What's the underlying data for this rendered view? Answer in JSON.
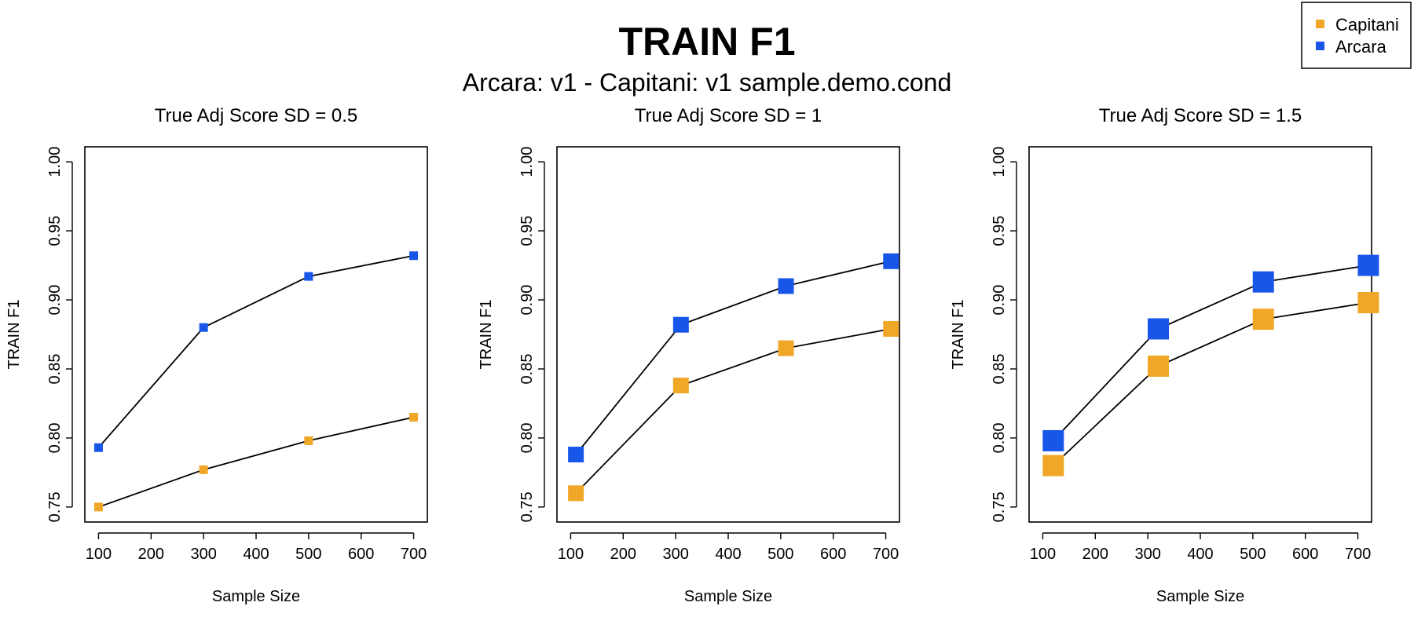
{
  "title": "TRAIN F1",
  "subtitle": "Arcara: v1 - Capitani: v1 sample.demo.cond",
  "legend": {
    "placement": "top-right",
    "items": [
      {
        "name": "Capitani",
        "color": "#f0a727"
      },
      {
        "name": "Arcara",
        "color": "#1856ea"
      }
    ]
  },
  "chart_data": [
    {
      "type": "line",
      "title": "True Adj Score SD = 0.5",
      "xlabel": "Sample Size",
      "ylabel": "TRAIN F1",
      "xlim": [
        100,
        700
      ],
      "ylim": [
        0.75,
        1.0
      ],
      "xticks": [
        "100",
        "200",
        "300",
        "400",
        "500",
        "600",
        "700"
      ],
      "yticks": [
        "0.75",
        "0.80",
        "0.85",
        "0.90",
        "0.95",
        "1.00"
      ],
      "grid": false,
      "series": [
        {
          "name": "Arcara",
          "color": "#1856ea",
          "x": [
            100,
            300,
            500,
            700
          ],
          "values": [
            0.793,
            0.88,
            0.917,
            0.932
          ]
        },
        {
          "name": "Capitani",
          "color": "#f0a727",
          "x": [
            100,
            300,
            500,
            700
          ],
          "values": [
            0.75,
            0.777,
            0.798,
            0.815
          ]
        }
      ]
    },
    {
      "type": "line",
      "title": "True Adj Score SD = 1",
      "xlabel": "Sample Size",
      "ylabel": "TRAIN F1",
      "xlim": [
        100,
        700
      ],
      "ylim": [
        0.75,
        1.0
      ],
      "xticks": [
        "100",
        "200",
        "300",
        "400",
        "500",
        "600",
        "700"
      ],
      "yticks": [
        "0.75",
        "0.80",
        "0.85",
        "0.90",
        "0.95",
        "1.00"
      ],
      "grid": false,
      "series": [
        {
          "name": "Arcara",
          "color": "#1856ea",
          "x": [
            110,
            310,
            510,
            710
          ],
          "values": [
            0.788,
            0.882,
            0.91,
            0.928
          ]
        },
        {
          "name": "Capitani",
          "color": "#f0a727",
          "x": [
            110,
            310,
            510,
            710
          ],
          "values": [
            0.76,
            0.838,
            0.865,
            0.879
          ]
        }
      ]
    },
    {
      "type": "line",
      "title": "True Adj Score SD = 1.5",
      "xlabel": "Sample Size",
      "ylabel": "TRAIN F1",
      "xlim": [
        100,
        700
      ],
      "ylim": [
        0.75,
        1.0
      ],
      "xticks": [
        "100",
        "200",
        "300",
        "400",
        "500",
        "600",
        "700"
      ],
      "yticks": [
        "0.75",
        "0.80",
        "0.85",
        "0.90",
        "0.95",
        "1.00"
      ],
      "grid": false,
      "series": [
        {
          "name": "Arcara",
          "color": "#1856ea",
          "x": [
            120,
            320,
            520,
            720
          ],
          "values": [
            0.798,
            0.879,
            0.913,
            0.925
          ]
        },
        {
          "name": "Capitani",
          "color": "#f0a727",
          "x": [
            120,
            320,
            520,
            720
          ],
          "values": [
            0.78,
            0.852,
            0.886,
            0.898
          ]
        }
      ]
    }
  ]
}
